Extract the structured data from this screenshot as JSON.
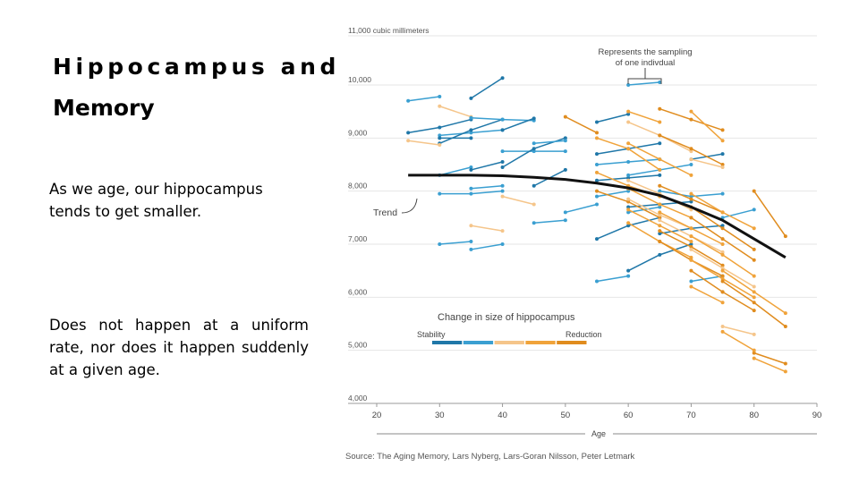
{
  "slide": {
    "title_line1": "Hippocampus and",
    "title_line2": "Memory",
    "paragraph1": "As we age, our hippocampus tends to get smaller.",
    "paragraph2": "Does not happen at a uniform rate, nor does it happen suddenly at a given age."
  },
  "chart_data": {
    "type": "line",
    "top_label": "11,000 cubic millimeters",
    "xlabel": "Age",
    "ylabel": "",
    "xlim": [
      20,
      90
    ],
    "ylim": [
      4000,
      11000
    ],
    "x_ticks": [
      "20",
      "30",
      "40",
      "50",
      "60",
      "70",
      "80",
      "90"
    ],
    "y_ticks": [
      {
        "value": 4000,
        "label": "4,000"
      },
      {
        "value": 5000,
        "label": "5,000"
      },
      {
        "value": 6000,
        "label": "6,000"
      },
      {
        "value": 7000,
        "label": "7,000"
      },
      {
        "value": 8000,
        "label": "8,000"
      },
      {
        "value": 9000,
        "label": "9,000"
      },
      {
        "value": 10000,
        "label": "10,000"
      }
    ],
    "grid": "horizontal",
    "trend": {
      "label": "Trend",
      "x": [
        25,
        30,
        35,
        40,
        45,
        50,
        55,
        60,
        65,
        70,
        75,
        80,
        85
      ],
      "y": [
        8300,
        8300,
        8300,
        8290,
        8260,
        8220,
        8150,
        8060,
        7920,
        7700,
        7450,
        7100,
        6750
      ]
    },
    "annotation": {
      "text_line1": "Represents the sampling",
      "text_line2": "of one indivdual"
    },
    "legend": {
      "title": "Change in size of hippocampus",
      "left_label": "Stability",
      "right_label": "Reduction",
      "colors": [
        "#1f77a8",
        "#3a9fd1",
        "#f5c58a",
        "#f0a33a",
        "#e08c1e"
      ]
    },
    "source": "Source: The Aging Memory, Lars Nyberg, Lars-Goran Nilsson, Peter Letmark",
    "series_colors": {
      "c0": "#1f77a8",
      "c1": "#3a9fd1",
      "c2": "#f5c58a",
      "c3": "#f0a33a",
      "c4": "#e08c1e"
    },
    "individuals": [
      {
        "c": 1,
        "x": [
          25,
          30
        ],
        "y": [
          9700,
          9780
        ]
      },
      {
        "c": 0,
        "x": [
          35,
          40
        ],
        "y": [
          9750,
          10130
        ]
      },
      {
        "c": 0,
        "x": [
          25,
          30,
          35
        ],
        "y": [
          9100,
          9200,
          9350
        ]
      },
      {
        "c": 1,
        "x": [
          30,
          35,
          40
        ],
        "y": [
          9050,
          9100,
          9150
        ]
      },
      {
        "c": 0,
        "x": [
          30,
          35,
          40
        ],
        "y": [
          8900,
          9150,
          9350
        ]
      },
      {
        "c": 2,
        "x": [
          30,
          35
        ],
        "y": [
          9600,
          9400
        ]
      },
      {
        "c": 2,
        "x": [
          25,
          30
        ],
        "y": [
          8950,
          8870
        ]
      },
      {
        "c": 1,
        "x": [
          35,
          40,
          45
        ],
        "y": [
          9380,
          9350,
          9330
        ]
      },
      {
        "c": 0,
        "x": [
          30,
          35
        ],
        "y": [
          9000,
          9000
        ]
      },
      {
        "c": 0,
        "x": [
          40,
          45
        ],
        "y": [
          9150,
          9370
        ]
      },
      {
        "c": 1,
        "x": [
          30,
          35
        ],
        "y": [
          8300,
          8450
        ]
      },
      {
        "c": 0,
        "x": [
          35,
          40
        ],
        "y": [
          8400,
          8550
        ]
      },
      {
        "c": 1,
        "x": [
          30,
          35,
          40
        ],
        "y": [
          7950,
          7950,
          8000
        ]
      },
      {
        "c": 1,
        "x": [
          35,
          40
        ],
        "y": [
          8050,
          8100
        ]
      },
      {
        "c": 2,
        "x": [
          40,
          45
        ],
        "y": [
          7900,
          7750
        ]
      },
      {
        "c": 1,
        "x": [
          40,
          45,
          50
        ],
        "y": [
          8750,
          8750,
          8750
        ]
      },
      {
        "c": 0,
        "x": [
          40,
          45,
          50
        ],
        "y": [
          8450,
          8800,
          9000
        ]
      },
      {
        "c": 1,
        "x": [
          45,
          50
        ],
        "y": [
          8900,
          8950
        ]
      },
      {
        "c": 0,
        "x": [
          45,
          50
        ],
        "y": [
          8100,
          8400
        ]
      },
      {
        "c": 1,
        "x": [
          45,
          50
        ],
        "y": [
          7400,
          7450
        ]
      },
      {
        "c": 2,
        "x": [
          35,
          40
        ],
        "y": [
          7350,
          7250
        ]
      },
      {
        "c": 1,
        "x": [
          30,
          35
        ],
        "y": [
          7000,
          7050
        ]
      },
      {
        "c": 1,
        "x": [
          35,
          40
        ],
        "y": [
          6900,
          7000
        ]
      },
      {
        "c": 1,
        "x": [
          50,
          55
        ],
        "y": [
          7600,
          7750
        ]
      },
      {
        "c": 1,
        "x": [
          55,
          60
        ],
        "y": [
          6300,
          6400
        ]
      },
      {
        "c": 1,
        "x": [
          60,
          65
        ],
        "y": [
          10000,
          10050
        ]
      },
      {
        "c": 0,
        "x": [
          55,
          60
        ],
        "y": [
          9300,
          9450
        ]
      },
      {
        "c": 0,
        "x": [
          55,
          60,
          65
        ],
        "y": [
          8700,
          8800,
          8900
        ]
      },
      {
        "c": 1,
        "x": [
          55,
          60,
          65
        ],
        "y": [
          8500,
          8550,
          8600
        ]
      },
      {
        "c": 0,
        "x": [
          55,
          60,
          65
        ],
        "y": [
          8200,
          8250,
          8300
        ]
      },
      {
        "c": 1,
        "x": [
          55,
          60
        ],
        "y": [
          7900,
          8000
        ]
      },
      {
        "c": 0,
        "x": [
          55,
          60,
          65
        ],
        "y": [
          7100,
          7350,
          7500
        ]
      },
      {
        "c": 1,
        "x": [
          60,
          65,
          70
        ],
        "y": [
          8300,
          8400,
          8500
        ]
      },
      {
        "c": 0,
        "x": [
          60,
          65,
          70
        ],
        "y": [
          7700,
          7750,
          7800
        ]
      },
      {
        "c": 1,
        "x": [
          60,
          65
        ],
        "y": [
          7600,
          7700
        ]
      },
      {
        "c": 0,
        "x": [
          60,
          65,
          70
        ],
        "y": [
          6500,
          6800,
          7000
        ]
      },
      {
        "c": 1,
        "x": [
          65,
          70,
          75
        ],
        "y": [
          8000,
          7900,
          7950
        ]
      },
      {
        "c": 0,
        "x": [
          65,
          70,
          75
        ],
        "y": [
          7200,
          7300,
          7350
        ]
      },
      {
        "c": 1,
        "x": [
          70,
          75
        ],
        "y": [
          6300,
          6400
        ]
      },
      {
        "c": 0,
        "x": [
          70,
          75
        ],
        "y": [
          8600,
          8700
        ]
      },
      {
        "c": 1,
        "x": [
          75,
          80
        ],
        "y": [
          7500,
          7650
        ]
      },
      {
        "c": 4,
        "x": [
          50,
          55
        ],
        "y": [
          9400,
          9100
        ]
      },
      {
        "c": 3,
        "x": [
          60,
          65
        ],
        "y": [
          9500,
          9300
        ]
      },
      {
        "c": 4,
        "x": [
          65,
          70,
          75
        ],
        "y": [
          9550,
          9350,
          9150
        ]
      },
      {
        "c": 3,
        "x": [
          70,
          75
        ],
        "y": [
          9500,
          8950
        ]
      },
      {
        "c": 2,
        "x": [
          60,
          65,
          70
        ],
        "y": [
          9300,
          9050,
          8750
        ]
      },
      {
        "c": 3,
        "x": [
          55,
          60,
          65
        ],
        "y": [
          9000,
          8800,
          8400
        ]
      },
      {
        "c": 3,
        "x": [
          60,
          65,
          70
        ],
        "y": [
          8900,
          8600,
          8300
        ]
      },
      {
        "c": 4,
        "x": [
          65,
          70,
          75
        ],
        "y": [
          9050,
          8800,
          8500
        ]
      },
      {
        "c": 2,
        "x": [
          70,
          75
        ],
        "y": [
          8600,
          8450
        ]
      },
      {
        "c": 3,
        "x": [
          55,
          60,
          65
        ],
        "y": [
          8350,
          8100,
          7900
        ]
      },
      {
        "c": 2,
        "x": [
          60,
          65,
          70
        ],
        "y": [
          8200,
          7950,
          7650
        ]
      },
      {
        "c": 3,
        "x": [
          60,
          65,
          70
        ],
        "y": [
          8050,
          7750,
          7500
        ]
      },
      {
        "c": 4,
        "x": [
          65,
          70,
          75
        ],
        "y": [
          8100,
          7850,
          7600
        ]
      },
      {
        "c": 3,
        "x": [
          70,
          75,
          80
        ],
        "y": [
          7950,
          7600,
          7300
        ]
      },
      {
        "c": 4,
        "x": [
          55,
          60,
          65
        ],
        "y": [
          8000,
          7800,
          7500
        ]
      },
      {
        "c": 2,
        "x": [
          60,
          65,
          70
        ],
        "y": [
          7850,
          7550,
          7300
        ]
      },
      {
        "c": 3,
        "x": [
          65,
          70,
          75
        ],
        "y": [
          7600,
          7300,
          7000
        ]
      },
      {
        "c": 4,
        "x": [
          70,
          75,
          80
        ],
        "y": [
          7700,
          7300,
          6900
        ]
      },
      {
        "c": 3,
        "x": [
          60,
          65,
          70
        ],
        "y": [
          7650,
          7350,
          7050
        ]
      },
      {
        "c": 2,
        "x": [
          65,
          70,
          75
        ],
        "y": [
          7450,
          7150,
          6850
        ]
      },
      {
        "c": 4,
        "x": [
          70,
          75,
          80
        ],
        "y": [
          7500,
          7100,
          6700
        ]
      },
      {
        "c": 3,
        "x": [
          60,
          65,
          70
        ],
        "y": [
          7400,
          7050,
          6750
        ]
      },
      {
        "c": 4,
        "x": [
          65,
          70,
          75
        ],
        "y": [
          7250,
          6950,
          6600
        ]
      },
      {
        "c": 3,
        "x": [
          70,
          75,
          80
        ],
        "y": [
          7150,
          6800,
          6400
        ]
      },
      {
        "c": 4,
        "x": [
          65,
          70,
          75
        ],
        "y": [
          7050,
          6700,
          6400
        ]
      },
      {
        "c": 2,
        "x": [
          70,
          75,
          80
        ],
        "y": [
          6900,
          6550,
          6200
        ]
      },
      {
        "c": 3,
        "x": [
          70,
          75,
          80
        ],
        "y": [
          6700,
          6350,
          6000
        ]
      },
      {
        "c": 4,
        "x": [
          70,
          75
        ],
        "y": [
          6500,
          6100
        ]
      },
      {
        "c": 3,
        "x": [
          75,
          80,
          85
        ],
        "y": [
          6500,
          6100,
          5700
        ]
      },
      {
        "c": 4,
        "x": [
          75,
          80,
          85
        ],
        "y": [
          6300,
          5900,
          5450
        ]
      },
      {
        "c": 3,
        "x": [
          70,
          75
        ],
        "y": [
          6200,
          5900
        ]
      },
      {
        "c": 4,
        "x": [
          75,
          80
        ],
        "y": [
          6100,
          5750
        ]
      },
      {
        "c": 4,
        "x": [
          80,
          85
        ],
        "y": [
          8000,
          7150
        ]
      },
      {
        "c": 4,
        "x": [
          80,
          85
        ],
        "y": [
          4950,
          4750
        ]
      },
      {
        "c": 3,
        "x": [
          80,
          85
        ],
        "y": [
          4850,
          4600
        ]
      },
      {
        "c": 2,
        "x": [
          75,
          80
        ],
        "y": [
          5450,
          5300
        ]
      },
      {
        "c": 3,
        "x": [
          75,
          80
        ],
        "y": [
          5350,
          5000
        ]
      }
    ]
  }
}
